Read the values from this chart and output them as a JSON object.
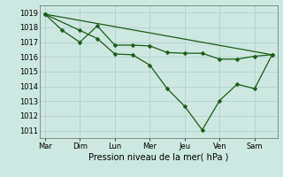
{
  "background_color": "#cce8e0",
  "grid_color": "#aacccc",
  "line_color": "#1a5c1a",
  "xlabel": "Pression niveau de la mer( hPa )",
  "ylim": [
    1010.5,
    1019.5
  ],
  "yticks": [
    1011,
    1012,
    1013,
    1014,
    1015,
    1016,
    1017,
    1018,
    1019
  ],
  "xtick_labels": [
    "Mar",
    "Dim",
    "Lun",
    "Mer",
    "Jeu",
    "Ven",
    "Sam"
  ],
  "xtick_positions": [
    0,
    1.0,
    2.0,
    3.0,
    4.0,
    5.0,
    6.0
  ],
  "xlim": [
    -0.15,
    6.65
  ],
  "trend_x": [
    0,
    6.5
  ],
  "trend_y": [
    1018.9,
    1016.15
  ],
  "series1_x": [
    0,
    0.5,
    1.0,
    1.5,
    2.0,
    2.5,
    3.0,
    3.5,
    4.0,
    4.5,
    5.0,
    5.5,
    6.0,
    6.5
  ],
  "series1_y": [
    1018.9,
    1017.8,
    1017.0,
    1018.1,
    1016.8,
    1016.8,
    1016.75,
    1016.3,
    1016.25,
    1016.25,
    1015.85,
    1015.85,
    1016.05,
    1016.15
  ],
  "series2_x": [
    0,
    1.0,
    1.5,
    2.0,
    2.5,
    3.0,
    3.5,
    4.0,
    4.5,
    5.0,
    5.5,
    6.0,
    6.5
  ],
  "series2_y": [
    1018.9,
    1017.8,
    1017.25,
    1016.2,
    1016.15,
    1015.45,
    1013.85,
    1012.65,
    1011.05,
    1013.05,
    1014.15,
    1013.85,
    1016.15
  ],
  "marker_size": 2.5,
  "linewidth": 0.9
}
